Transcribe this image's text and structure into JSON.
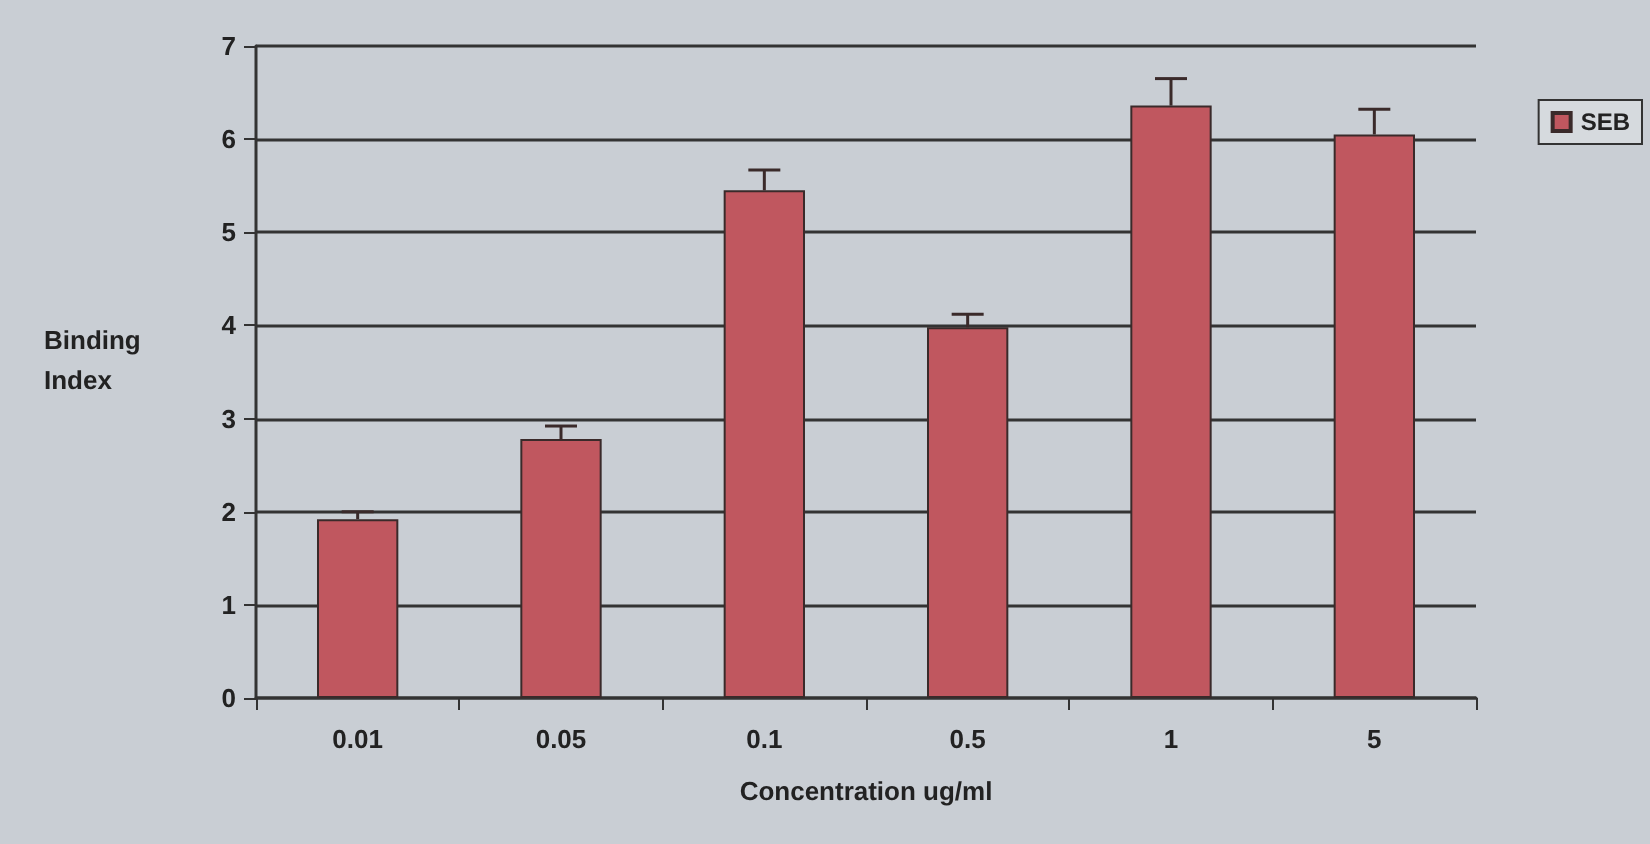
{
  "chart_data": {
    "type": "bar",
    "xlabel": "Concentration ug/ml",
    "ylabel": "Binding Index",
    "categories": [
      "0.01",
      "0.05",
      "0.1",
      "0.5",
      "1",
      "5"
    ],
    "series": [
      {
        "name": "SEB",
        "color": "#c0575f",
        "values": [
          1.92,
          2.78,
          5.45,
          3.98,
          6.36,
          6.05
        ],
        "errors": [
          [
            1.92,
            2.0
          ],
          [
            2.78,
            2.92
          ],
          [
            5.45,
            5.67
          ],
          [
            3.98,
            4.12
          ],
          [
            6.36,
            6.65
          ],
          [
            6.05,
            6.32
          ]
        ]
      }
    ],
    "ylim": [
      0,
      7
    ],
    "yticks": [
      0,
      1,
      2,
      3,
      4,
      5,
      6,
      7
    ],
    "grid": "y",
    "legend": "top right"
  }
}
